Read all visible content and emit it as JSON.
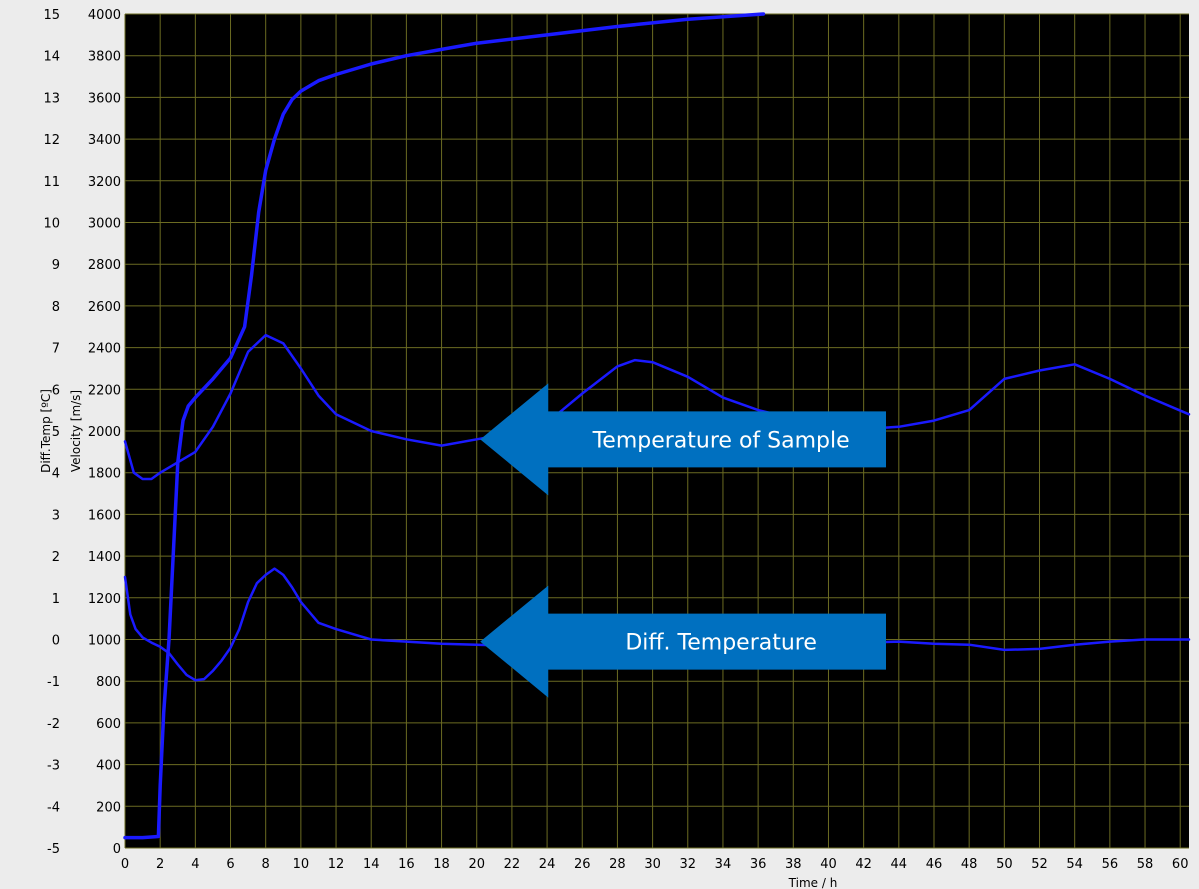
{
  "chart_data": {
    "type": "line",
    "title": "",
    "xlabel": "Time / h",
    "xlim": [
      0,
      60.5
    ],
    "x_ticks": [
      "0",
      "2",
      "4",
      "6",
      "8",
      "10",
      "12",
      "14",
      "16",
      "18",
      "20",
      "22",
      "24",
      "26",
      "28",
      "30",
      "32",
      "34",
      "36",
      "38",
      "40",
      "42",
      "44",
      "46",
      "48",
      "50",
      "52",
      "54",
      "56",
      "58",
      "60"
    ],
    "y_left": {
      "label": "Diff.Temp [ºC]",
      "ylim": [
        -5,
        15
      ],
      "ticks": [
        "-5",
        "-4",
        "-3",
        "-2",
        "-1",
        "0",
        "1",
        "2",
        "3",
        "4",
        "5",
        "6",
        "7",
        "8",
        "9",
        "10",
        "11",
        "12",
        "13",
        "14",
        "15"
      ]
    },
    "y_right": {
      "label": "Velocity [m/s]",
      "ylim": [
        0,
        4000
      ],
      "ticks": [
        "0",
        "200",
        "400",
        "600",
        "800",
        "1000",
        "1200",
        "1400",
        "1600",
        "1800",
        "2000",
        "2200",
        "2400",
        "2600",
        "2800",
        "3000",
        "3200",
        "3400",
        "3600",
        "3800",
        "4000"
      ]
    },
    "grid": true,
    "line_color": "#1a1aff",
    "plot_background": "#000000",
    "grid_color": "#6b6b22",
    "series": [
      {
        "axis": "right",
        "x": [
          0,
          1,
          1.9,
          2.0,
          2.2,
          2.5,
          2.8,
          3.0,
          3.3,
          3.6,
          4,
          5,
          6,
          6.8,
          7.2,
          7.6,
          8.0,
          8.5,
          9.0,
          9.5,
          10,
          11,
          12,
          14,
          16,
          18,
          20,
          24,
          28,
          32,
          36.3
        ],
        "values": [
          50,
          50,
          55,
          300,
          650,
          1000,
          1500,
          1850,
          2050,
          2120,
          2160,
          2250,
          2350,
          2500,
          2750,
          3050,
          3250,
          3400,
          3520,
          3590,
          3630,
          3680,
          3710,
          3760,
          3800,
          3830,
          3860,
          3900,
          3940,
          3975,
          4000
        ]
      },
      {
        "axis": "right",
        "x": [
          0,
          0.5,
          1,
          1.5,
          2,
          3,
          4,
          5,
          6,
          7,
          8,
          9,
          10,
          11,
          12,
          14,
          16,
          18,
          20,
          22,
          24,
          26,
          28,
          29,
          30,
          32,
          34,
          36,
          38,
          40,
          42,
          44,
          46,
          48,
          50,
          52,
          54,
          56,
          58,
          60.5
        ],
        "values": [
          1950,
          1800,
          1770,
          1770,
          1800,
          1850,
          1900,
          2020,
          2180,
          2380,
          2460,
          2420,
          2300,
          2170,
          2080,
          2000,
          1960,
          1930,
          1960,
          1990,
          2040,
          2180,
          2310,
          2340,
          2330,
          2260,
          2160,
          2100,
          2060,
          2040,
          2010,
          2020,
          2050,
          2100,
          2250,
          2290,
          2320,
          2250,
          2170,
          2080
        ]
      },
      {
        "axis": "right",
        "x": [
          0,
          0.3,
          0.6,
          1,
          1.5,
          2,
          2.5,
          3,
          3.5,
          4,
          4.5,
          5,
          5.5,
          6,
          6.5,
          7,
          7.5,
          8,
          8.5,
          9,
          9.5,
          10,
          11,
          12,
          14,
          16,
          18,
          20,
          22,
          24,
          26,
          28,
          30,
          32,
          34,
          36,
          38,
          40,
          42,
          44,
          46,
          48,
          50,
          52,
          54,
          56,
          58,
          60.5
        ],
        "values": [
          1300,
          1120,
          1050,
          1010,
          985,
          965,
          935,
          880,
          830,
          805,
          810,
          850,
          900,
          960,
          1050,
          1180,
          1270,
          1310,
          1340,
          1310,
          1250,
          1180,
          1080,
          1050,
          1000,
          990,
          980,
          975,
          970,
          975,
          985,
          990,
          995,
          990,
          985,
          985,
          980,
          980,
          985,
          990,
          980,
          975,
          950,
          955,
          975,
          990,
          1000,
          1000
        ]
      }
    ],
    "annotations": [
      {
        "text": "Temperature of Sample",
        "points_to": {
          "x": 20.2,
          "y": 1960
        }
      },
      {
        "text": "Diff. Temperature",
        "points_to": {
          "x": 20.2,
          "y": 990
        }
      }
    ]
  }
}
